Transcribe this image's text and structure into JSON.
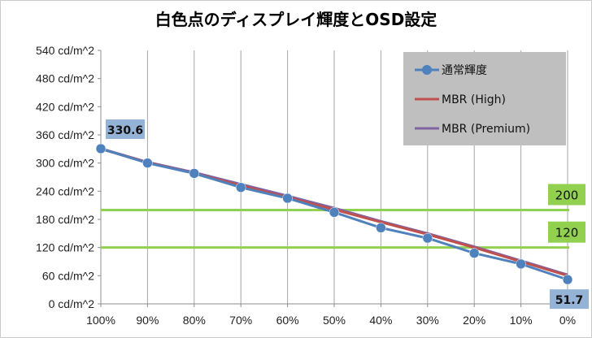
{
  "chart_data": {
    "type": "line",
    "title": "白色点のディスプレイ輝度とOSD設定",
    "categories": [
      "100%",
      "90%",
      "80%",
      "70%",
      "60%",
      "50%",
      "40%",
      "30%",
      "20%",
      "10%",
      "0%"
    ],
    "y_ticks": [
      "0 cd/m^2",
      "60 cd/m^2",
      "120 cd/m^2",
      "180 cd/m^2",
      "240 cd/m^2",
      "300 cd/m^2",
      "360 cd/m^2",
      "420 cd/m^2",
      "480 cd/m^2",
      "540 cd/m^2"
    ],
    "ylim": [
      0,
      540
    ],
    "grid": "vertical",
    "legend_position": "top-right",
    "series": [
      {
        "name": "通常輝度",
        "color": "#4f81bd",
        "markers": true,
        "values": [
          330.6,
          300,
          278,
          248,
          225,
          195,
          162,
          140,
          108,
          85,
          51.7
        ]
      },
      {
        "name": "MBR (High)",
        "color": "#c0504d",
        "markers": false,
        "values": [
          330,
          301,
          278,
          252,
          227,
          201,
          174,
          148,
          120,
          90,
          60
        ]
      },
      {
        "name": "MBR (Premium)",
        "color": "#8064a2",
        "markers": false,
        "values": [
          331,
          302,
          280,
          255,
          230,
          204,
          176,
          150,
          122,
          92,
          62
        ]
      }
    ],
    "reference_lines": [
      {
        "value": 200,
        "label": "200",
        "color": "#92d050"
      },
      {
        "value": 120,
        "label": "120",
        "color": "#92d050"
      }
    ],
    "point_labels": [
      {
        "series": 0,
        "index": 0,
        "text": "330.6"
      },
      {
        "series": 0,
        "index": 10,
        "text": "51.7"
      }
    ],
    "label_bg_color": "#95b3d7",
    "ref_label_bg_color": "#92d050"
  }
}
